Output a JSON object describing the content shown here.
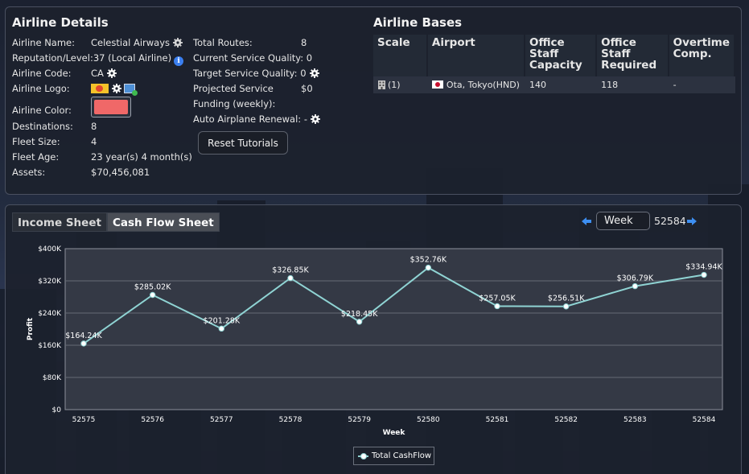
{
  "details": {
    "title": "Airline Details",
    "left": [
      {
        "label": "Airline Name:",
        "value": "Celestial Airways"
      },
      {
        "label": "Reputation/Level:",
        "value": "37 (Local Airline)"
      },
      {
        "label": "Airline Code:",
        "value": "CA"
      },
      {
        "label": "Airline Logo:",
        "value": ""
      },
      {
        "label": "Airline Color:",
        "value": ""
      },
      {
        "label": "Destinations:",
        "value": "8"
      },
      {
        "label": "Fleet Size:",
        "value": "4"
      },
      {
        "label": "Fleet Age:",
        "value": "23 year(s) 4 month(s)"
      },
      {
        "label": "Assets:",
        "value": "$70,456,081"
      }
    ],
    "right": [
      {
        "label": "Total Routes:",
        "value": "8"
      },
      {
        "label": "Current Service Quality:",
        "value": "0"
      },
      {
        "label": "Target Service Quality:",
        "value": "0"
      },
      {
        "label": "Projected Service",
        "value": "$0"
      },
      {
        "label": "Funding (weekly):",
        "value": ""
      },
      {
        "label": "Auto Airplane Renewal:",
        "value": "-"
      }
    ],
    "airline_color": "#f06868",
    "reset_button": "Reset Tutorials"
  },
  "bases": {
    "title": "Airline Bases",
    "headers": [
      "Scale",
      "Airport",
      "Office Staff Capacity",
      "Office Staff Required",
      "Overtime Comp."
    ],
    "rows": [
      {
        "scale": "(1)",
        "airport": "Ota, Tokyo(HND)",
        "capacity": "140",
        "required": "118",
        "overtime": "-"
      }
    ]
  },
  "finance": {
    "tabs": [
      "Income Sheet",
      "Cash Flow Sheet"
    ],
    "active_tab": "Cash Flow Sheet",
    "period": "Week",
    "current_period": "52584",
    "legend": "Total CashFlow"
  },
  "chart_data": {
    "type": "line",
    "xlabel": "Week",
    "ylabel": "Profit",
    "ylim": [
      0,
      400000
    ],
    "y_ticks": [
      "$0",
      "$80K",
      "$160K",
      "$240K",
      "$320K",
      "$400K"
    ],
    "x": [
      "52575",
      "52576",
      "52577",
      "52578",
      "52579",
      "52580",
      "52581",
      "52582",
      "52583",
      "52584"
    ],
    "series": [
      {
        "name": "Total CashFlow",
        "values": [
          164240,
          285020,
          201280,
          326850,
          218450,
          352760,
          257050,
          256510,
          306790,
          334940
        ],
        "labels": [
          "$164.24K",
          "$285.02K",
          "$201.28K",
          "$326.85K",
          "$218.45K",
          "$352.76K",
          "$257.05K",
          "$256.51K",
          "$306.79K",
          "$334.94K"
        ]
      }
    ],
    "line_color": "#8fd3d3",
    "grid": true
  }
}
